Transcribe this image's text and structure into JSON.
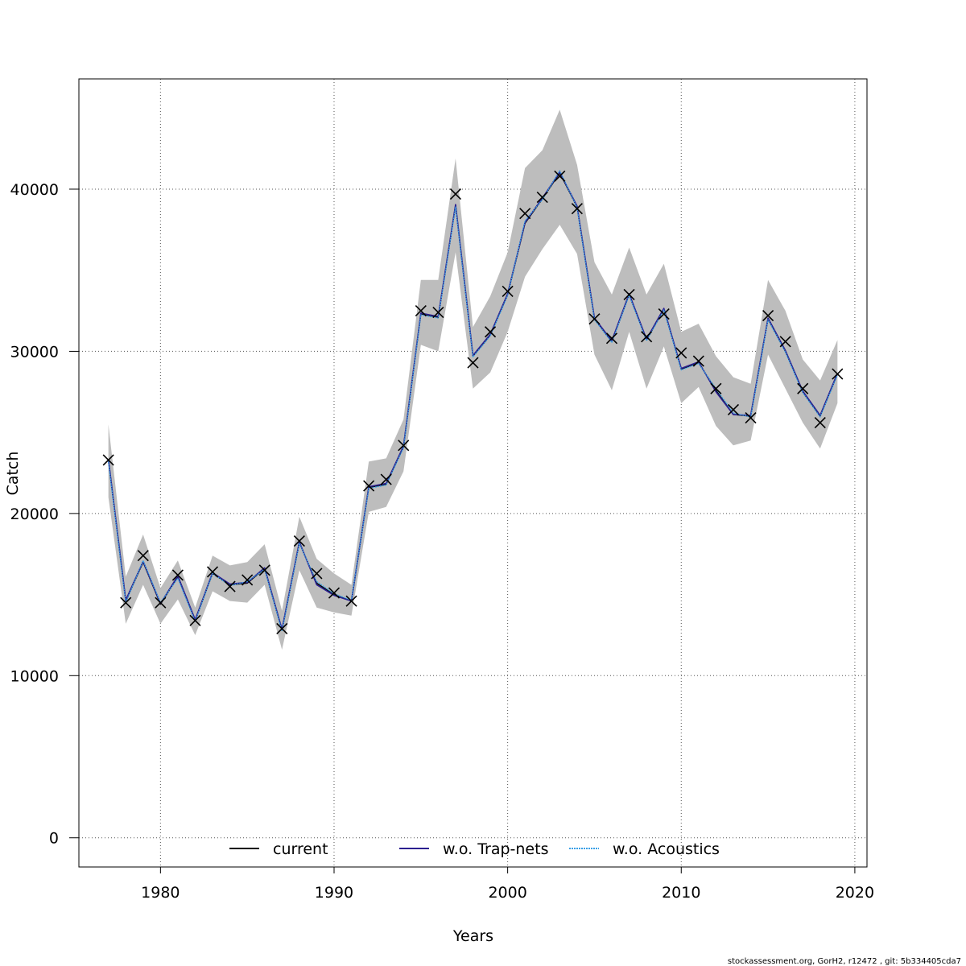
{
  "chart_data": {
    "type": "line",
    "title": "",
    "xlabel": "Years",
    "ylabel": "Catch",
    "xlim": [
      1975.3,
      2020.7
    ],
    "ylim": [
      -1800,
      46800
    ],
    "x_ticks": [
      1980,
      1990,
      2000,
      2010,
      2020
    ],
    "y_ticks": [
      0,
      10000,
      20000,
      30000,
      40000
    ],
    "grid": true,
    "legend_position": "bottom",
    "x": [
      1977,
      1978,
      1979,
      1980,
      1981,
      1982,
      1983,
      1984,
      1985,
      1986,
      1987,
      1988,
      1989,
      1990,
      1991,
      1992,
      1993,
      1994,
      1995,
      1996,
      1997,
      1998,
      1999,
      2000,
      2001,
      2002,
      2003,
      2004,
      2005,
      2006,
      2007,
      2008,
      2009,
      2010,
      2011,
      2012,
      2013,
      2014,
      2015,
      2016,
      2017,
      2018,
      2019
    ],
    "observed": {
      "marker": "x",
      "values": [
        23300,
        14500,
        17400,
        14500,
        16200,
        13400,
        16400,
        15500,
        15900,
        16500,
        12900,
        18300,
        16300,
        15100,
        14600,
        21700,
        22100,
        24200,
        32500,
        32400,
        39700,
        29300,
        31200,
        33700,
        38500,
        39500,
        40800,
        38800,
        32000,
        30800,
        33500,
        30900,
        32300,
        29900,
        29400,
        27700,
        26400,
        25900,
        32200,
        30600,
        27700,
        25600,
        28600
      ]
    },
    "confidence_band": {
      "lower": [
        21000,
        13200,
        15600,
        13200,
        14700,
        12500,
        15200,
        14600,
        14500,
        15600,
        11600,
        16500,
        14200,
        13900,
        13700,
        20100,
        20400,
        22600,
        30400,
        30000,
        36100,
        27700,
        28700,
        31200,
        34600,
        36300,
        37800,
        36000,
        29800,
        27600,
        31200,
        27700,
        30300,
        26800,
        27800,
        25400,
        24200,
        24500,
        29800,
        27700,
        25600,
        24000,
        26800
      ],
      "upper": [
        25500,
        16100,
        18700,
        15400,
        17100,
        14200,
        17400,
        16800,
        17000,
        18100,
        14000,
        19800,
        17200,
        16300,
        15600,
        23200,
        23400,
        25800,
        34400,
        34400,
        41900,
        31500,
        33400,
        36100,
        41300,
        42400,
        44900,
        41500,
        35500,
        33500,
        36400,
        33500,
        35400,
        31200,
        31700,
        29700,
        28400,
        28000,
        34400,
        32500,
        29500,
        28200,
        30700
      ]
    },
    "series": [
      {
        "name": "current",
        "color": "#000000",
        "style": "solid",
        "values": [
          23300,
          14600,
          17000,
          14400,
          16100,
          13400,
          16300,
          15600,
          15700,
          16600,
          12800,
          18200,
          15700,
          15000,
          14600,
          21600,
          21800,
          24100,
          32300,
          32100,
          39000,
          29700,
          31000,
          33500,
          37900,
          39400,
          41000,
          38900,
          32000,
          30600,
          33500,
          30700,
          32600,
          28900,
          29300,
          27600,
          26100,
          26000,
          32000,
          30000,
          27500,
          26000,
          28600
        ]
      },
      {
        "name": "w.o. Trap-nets",
        "color": "#2b1f8f",
        "style": "solid",
        "values": [
          23350,
          14650,
          17050,
          14450,
          16150,
          13450,
          16350,
          15650,
          15750,
          16650,
          12850,
          18250,
          15600,
          14950,
          14600,
          21650,
          21850,
          24150,
          32350,
          32150,
          39050,
          29750,
          31050,
          33550,
          37950,
          39450,
          41050,
          38950,
          32050,
          30650,
          33550,
          30750,
          32650,
          28950,
          29350,
          27500,
          26100,
          26050,
          32050,
          30050,
          27550,
          26050,
          28650
        ]
      },
      {
        "name": "w.o. Acoustics",
        "color": "#3aa0e6",
        "style": "dotted",
        "values": [
          23200,
          14500,
          17100,
          14500,
          16000,
          13350,
          16300,
          15550,
          15800,
          16550,
          12750,
          18150,
          15800,
          15050,
          14650,
          21550,
          21750,
          24050,
          32250,
          32050,
          38900,
          29650,
          30950,
          33450,
          38050,
          39350,
          41150,
          38850,
          31950,
          30550,
          33450,
          30650,
          32550,
          28850,
          29250,
          27700,
          26200,
          25950,
          31950,
          29950,
          27450,
          25950,
          28550
        ]
      }
    ]
  },
  "footer": "stockassessment.org, GorH2, r12472 , git: 5b334405cda7"
}
